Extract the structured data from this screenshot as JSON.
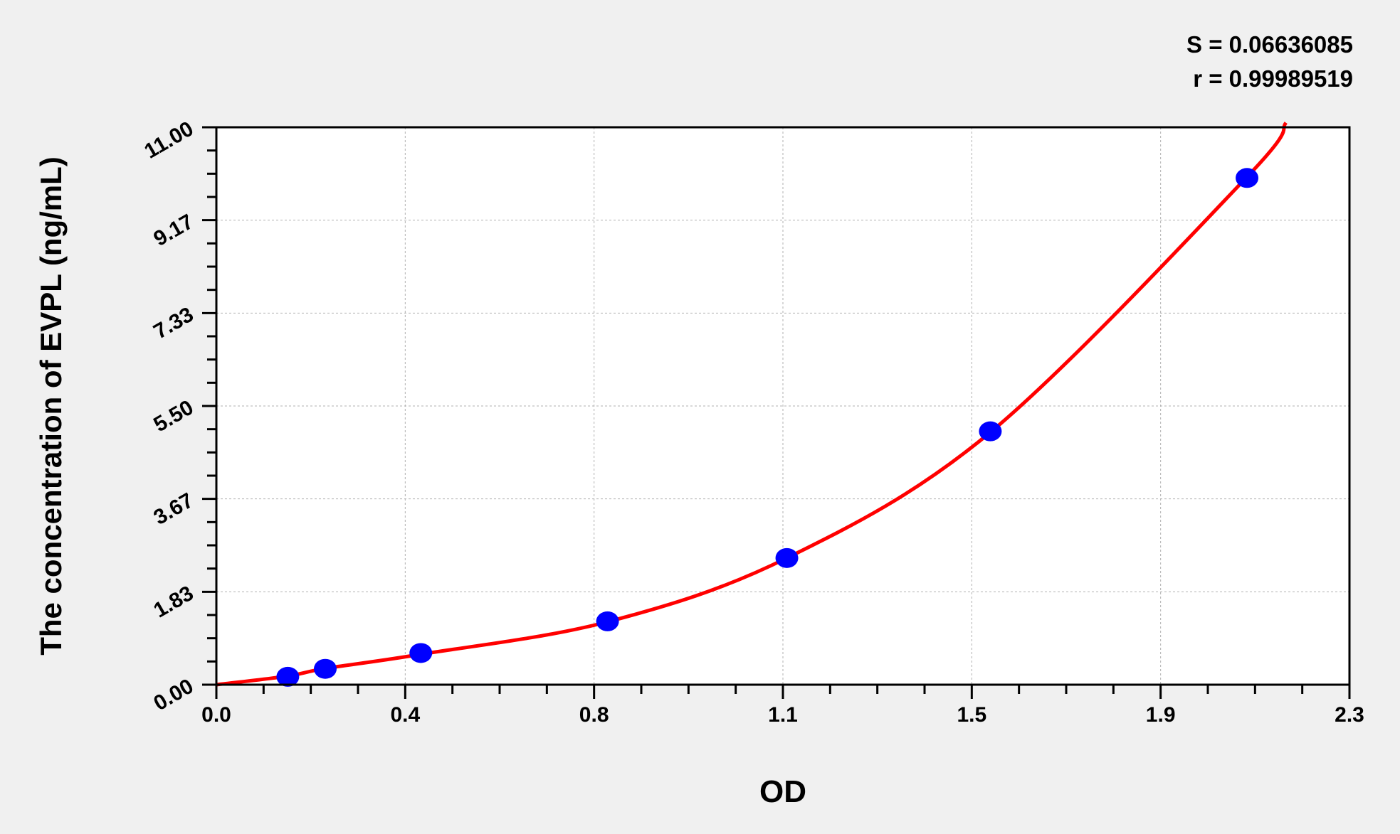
{
  "chart_data": {
    "type": "scatter",
    "title": "",
    "xlabel": "OD",
    "ylabel": "The concentration of EVPL (ng/mL)",
    "xlim": [
      0.0,
      2.3
    ],
    "ylim": [
      0.0,
      11.0
    ],
    "x_ticks": [
      "0.0",
      "0.4",
      "0.8",
      "1.1",
      "1.5",
      "1.9",
      "2.3"
    ],
    "y_ticks": [
      "0.00",
      "1.83",
      "3.67",
      "5.50",
      "7.33",
      "9.17",
      "11.00"
    ],
    "grid": true,
    "points": [
      {
        "x": 0.145,
        "y": 0.156
      },
      {
        "x": 0.221,
        "y": 0.313
      },
      {
        "x": 0.415,
        "y": 0.625
      },
      {
        "x": 0.794,
        "y": 1.25
      },
      {
        "x": 1.158,
        "y": 2.5
      },
      {
        "x": 1.571,
        "y": 5.0
      },
      {
        "x": 2.092,
        "y": 10.0
      }
    ],
    "fit_curve": [
      {
        "x": 0.0,
        "y": 0.0
      },
      {
        "x": 0.145,
        "y": 0.17
      },
      {
        "x": 0.221,
        "y": 0.32
      },
      {
        "x": 0.415,
        "y": 0.6
      },
      {
        "x": 0.794,
        "y": 1.24
      },
      {
        "x": 1.158,
        "y": 2.5
      },
      {
        "x": 1.571,
        "y": 4.98
      },
      {
        "x": 2.092,
        "y": 10.02
      },
      {
        "x": 2.171,
        "y": 11.09
      }
    ],
    "annotations": {
      "S": "S = 0.06636085",
      "r": "r = 0.99989519"
    },
    "colors": {
      "points": "#0000ff",
      "curve": "#ff0000",
      "background": "#f0f0f0",
      "plot": "#ffffff"
    }
  }
}
